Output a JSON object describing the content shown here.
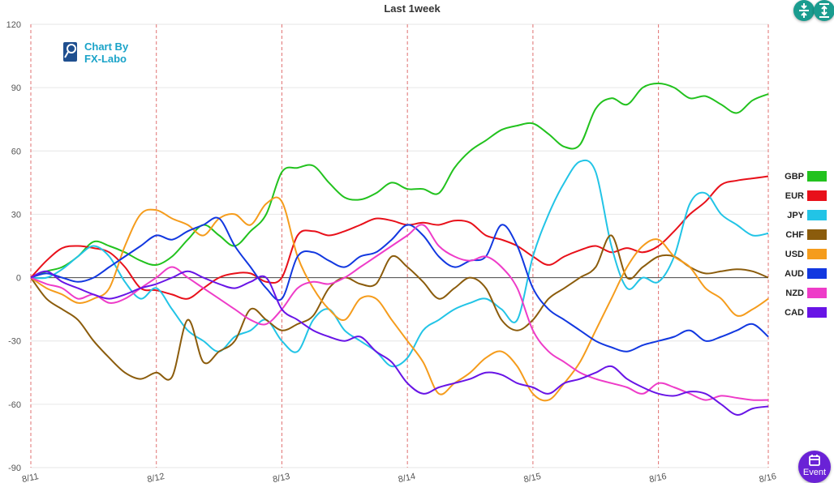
{
  "colors": {
    "GBP": "#22c21e",
    "EUR": "#e8101a",
    "JPY": "#22c4e6",
    "CHF": "#8b5c0c",
    "USD": "#f59c1c",
    "AUD": "#1238e0",
    "NZD": "#ee3cc8",
    "CAD": "#6814e6",
    "grid": "#e6e6e6",
    "zero_line": "#444444",
    "day_line": "#e07070",
    "button": "#1a9c8f",
    "event_button": "#6a22d6"
  },
  "logo": {
    "line1": "Chart By",
    "line2": "FX-Labo",
    "icon": "chart-magnifier-icon"
  },
  "toolbar": {
    "compress_icon": "compress-vertical-icon",
    "expand_icon": "expand-vertical-icon"
  },
  "event_button": {
    "label": "Event",
    "icon": "calendar-icon"
  },
  "chart_data": {
    "type": "line",
    "title": "Last 1week",
    "xlabel": "",
    "ylabel": "",
    "ylim": [
      -90,
      120
    ],
    "xlim": [
      0,
      5.875
    ],
    "yticks": [
      120,
      90,
      60,
      30,
      0,
      -30,
      -60,
      -90
    ],
    "grid": true,
    "legend_position": "right",
    "day_markers": [
      {
        "x": 0,
        "label": "8/11"
      },
      {
        "x": 1,
        "label": "8/12"
      },
      {
        "x": 2,
        "label": "8/13"
      },
      {
        "x": 3,
        "label": "8/14"
      },
      {
        "x": 4,
        "label": "8/15"
      },
      {
        "x": 5,
        "label": "8/16"
      },
      {
        "x": 5.875,
        "label": "8/16"
      }
    ],
    "x": [
      0,
      0.125,
      0.25,
      0.375,
      0.5,
      0.625,
      0.75,
      0.875,
      1,
      1.125,
      1.25,
      1.375,
      1.5,
      1.625,
      1.75,
      1.875,
      2,
      2.125,
      2.25,
      2.375,
      2.5,
      2.625,
      2.75,
      2.875,
      3,
      3.125,
      3.25,
      3.375,
      3.5,
      3.625,
      3.75,
      3.875,
      4,
      4.125,
      4.25,
      4.375,
      4.5,
      4.625,
      4.75,
      4.875,
      5,
      5.125,
      5.25,
      5.375,
      5.5,
      5.625,
      5.75,
      5.875
    ],
    "series": [
      {
        "name": "GBP",
        "values": [
          0,
          3,
          5,
          10,
          17,
          15,
          12,
          8,
          6,
          10,
          18,
          25,
          20,
          15,
          22,
          30,
          50,
          52,
          53,
          45,
          38,
          37,
          40,
          45,
          42,
          42,
          40,
          52,
          60,
          65,
          70,
          72,
          73,
          68,
          62,
          63,
          80,
          85,
          82,
          90,
          92,
          90,
          85,
          86,
          82,
          78,
          84,
          87
        ]
      },
      {
        "name": "EUR",
        "values": [
          0,
          8,
          14,
          15,
          14,
          12,
          5,
          -5,
          -6,
          -8,
          -10,
          -5,
          0,
          2,
          2,
          -2,
          0,
          20,
          22,
          20,
          22,
          25,
          28,
          27,
          25,
          26,
          25,
          27,
          26,
          20,
          18,
          15,
          10,
          6,
          10,
          13,
          15,
          12,
          14,
          12,
          15,
          22,
          30,
          36,
          44,
          46,
          47,
          48
        ]
      },
      {
        "name": "JPY",
        "values": [
          0,
          0,
          4,
          10,
          15,
          10,
          -2,
          -10,
          -5,
          -15,
          -25,
          -30,
          -35,
          -28,
          -25,
          -20,
          -30,
          -35,
          -20,
          -15,
          -25,
          -30,
          -35,
          -42,
          -38,
          -25,
          -20,
          -15,
          -12,
          -10,
          -15,
          -20,
          10,
          30,
          45,
          55,
          50,
          15,
          -5,
          0,
          -2,
          10,
          35,
          40,
          30,
          25,
          20,
          21
        ]
      },
      {
        "name": "CHF",
        "values": [
          0,
          -10,
          -15,
          -20,
          -30,
          -38,
          -45,
          -48,
          -45,
          -47,
          -20,
          -40,
          -35,
          -30,
          -15,
          -20,
          -25,
          -22,
          -18,
          -5,
          0,
          -3,
          -3,
          10,
          5,
          -2,
          -10,
          -5,
          0,
          -5,
          -20,
          -25,
          -20,
          -10,
          -5,
          0,
          5,
          20,
          0,
          5,
          10,
          10,
          5,
          2,
          3,
          4,
          3,
          0
        ]
      },
      {
        "name": "USD",
        "values": [
          0,
          -5,
          -8,
          -12,
          -10,
          -5,
          15,
          30,
          32,
          28,
          25,
          20,
          28,
          30,
          25,
          35,
          36,
          10,
          -5,
          -15,
          -20,
          -10,
          -10,
          -20,
          -30,
          -40,
          -55,
          -50,
          -45,
          -38,
          -35,
          -42,
          -55,
          -58,
          -50,
          -40,
          -25,
          -10,
          5,
          15,
          18,
          10,
          5,
          -5,
          -10,
          -18,
          -15,
          -10
        ]
      },
      {
        "name": "AUD",
        "values": [
          0,
          2,
          0,
          -2,
          0,
          5,
          10,
          15,
          20,
          18,
          22,
          25,
          28,
          15,
          5,
          -5,
          -10,
          10,
          12,
          8,
          5,
          10,
          12,
          18,
          25,
          20,
          10,
          5,
          8,
          10,
          25,
          15,
          -5,
          -15,
          -20,
          -25,
          -30,
          -33,
          -35,
          -32,
          -30,
          -28,
          -25,
          -30,
          -28,
          -25,
          -22,
          -28
        ]
      },
      {
        "name": "NZD",
        "values": [
          0,
          -3,
          -5,
          -10,
          -8,
          -12,
          -10,
          -5,
          0,
          5,
          0,
          -5,
          -10,
          -15,
          -20,
          -22,
          -15,
          -5,
          -2,
          -3,
          0,
          5,
          10,
          15,
          20,
          25,
          15,
          10,
          8,
          10,
          5,
          -5,
          -25,
          -35,
          -40,
          -45,
          -48,
          -50,
          -52,
          -55,
          -50,
          -52,
          -55,
          -58,
          -56,
          -57,
          -58,
          -58
        ]
      },
      {
        "name": "CAD",
        "values": [
          0,
          3,
          -2,
          -5,
          -8,
          -10,
          -8,
          -5,
          -3,
          0,
          3,
          0,
          -3,
          -5,
          -2,
          0,
          -15,
          -20,
          -25,
          -28,
          -30,
          -28,
          -35,
          -40,
          -50,
          -55,
          -52,
          -50,
          -48,
          -45,
          -46,
          -50,
          -52,
          -55,
          -50,
          -48,
          -45,
          -42,
          -48,
          -52,
          -55,
          -56,
          -54,
          -55,
          -60,
          -65,
          -62,
          -61
        ]
      }
    ]
  }
}
